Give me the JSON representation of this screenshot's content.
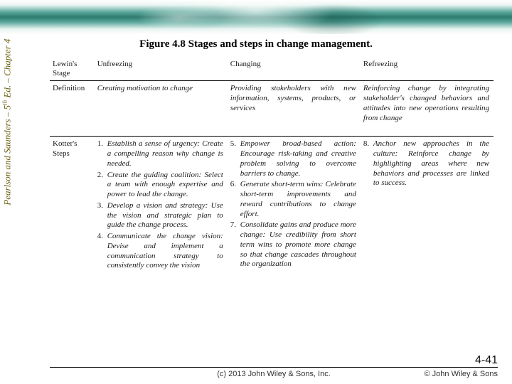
{
  "banner": {
    "colors": [
      "#ffffff",
      "#e8f4f0",
      "#5ba89d",
      "#2d7a6f"
    ]
  },
  "figure_title": "Figure 4.8  Stages and steps in change management.",
  "spine": {
    "text_pre": "Pearlson and Saunders – 5",
    "sup": "th",
    "text_post": " Ed. – Chapter 4",
    "color": "#6b5d0f"
  },
  "table": {
    "row_labels": {
      "stage": "Lewin's Stage",
      "definition": "Definition",
      "steps": "Kotter's Steps"
    },
    "columns": {
      "unfreezing": {
        "header": "Unfreezing",
        "definition": "Creating motivation to change",
        "steps": [
          {
            "n": "1.",
            "t": "Establish a sense of urgency: Create a compelling reason why change is needed."
          },
          {
            "n": "2.",
            "t": "Create the guiding coalition: Select a team with enough expertise and power to lead the change."
          },
          {
            "n": "3.",
            "t": "Develop a vision and strategy: Use the vision and strategic plan to guide the change process."
          },
          {
            "n": "4.",
            "t": "Communicate the change vision: Devise and implement a communication strategy to consistently convey the vision"
          }
        ]
      },
      "changing": {
        "header": "Changing",
        "definition": "Providing stakeholders with new information, systems, products, or services",
        "steps": [
          {
            "n": "5.",
            "t": "Empower broad-based action: Encourage risk-taking and creative problem solving to overcome barriers to change."
          },
          {
            "n": "6.",
            "t": "Generate short-term wins: Celebrate short-term improvements and reward contributions to change effort."
          },
          {
            "n": "7.",
            "t": "Consolidate gains and produce more change: Use credibility from short term wins to promote more change so that change cascades throughout the organization"
          }
        ]
      },
      "refreezing": {
        "header": "Refreezing",
        "definition": "Reinforcing change by integrating stakeholder's changed behaviors and attitudes into new operations resulting from change",
        "steps": [
          {
            "n": "8.",
            "t": "Anchor new approaches in the culture: Reinforce change by highlighting areas where new behaviors and processes are linked to success."
          }
        ]
      }
    }
  },
  "footer": {
    "center": "(c) 2013 John Wiley & Sons, Inc.",
    "right": "© John Wiley & Sons",
    "page": "4-41"
  }
}
